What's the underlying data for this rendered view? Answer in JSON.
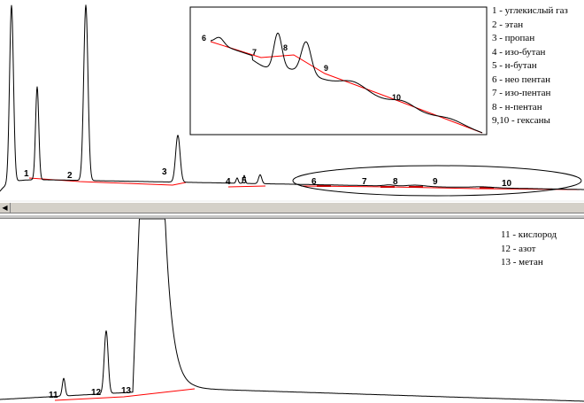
{
  "chart_data": [
    {
      "type": "line",
      "title": "",
      "xlabel": "",
      "ylabel": "",
      "grid": false,
      "legend_placement": "top-right",
      "legend": [
        {
          "key": "1",
          "text": "углекислый газ"
        },
        {
          "key": "2",
          "text": "этан"
        },
        {
          "key": "3",
          "text": "пропан"
        },
        {
          "key": "4",
          "text": "изо-бутан"
        },
        {
          "key": "5",
          "text": "н-бутан"
        },
        {
          "key": "6",
          "text": "нео пентан"
        },
        {
          "key": "7",
          "text": "изо-пентан"
        },
        {
          "key": "8",
          "text": "н-пентан"
        },
        {
          "key": "9,10",
          "text": "гексаны"
        }
      ],
      "peak_labels": [
        "1",
        "2",
        "3",
        "4",
        "5",
        "6",
        "7",
        "8",
        "9",
        "10"
      ],
      "inset": {
        "peak_labels": [
          "6",
          "7",
          "8",
          "9",
          "10"
        ]
      }
    },
    {
      "type": "line",
      "title": "",
      "xlabel": "",
      "ylabel": "",
      "grid": false,
      "legend_placement": "top-right",
      "legend": [
        {
          "key": "11",
          "text": "кислород"
        },
        {
          "key": "12",
          "text": "азот"
        },
        {
          "key": "13",
          "text": "метан"
        }
      ],
      "peak_labels": [
        "11",
        "12",
        "13"
      ]
    }
  ],
  "colors": {
    "trace": "#000000",
    "baseline": "#ff0000",
    "scrollbar": "#d4d0c8"
  },
  "ui": {
    "scroll_left_icon": "arrow-left-icon"
  }
}
